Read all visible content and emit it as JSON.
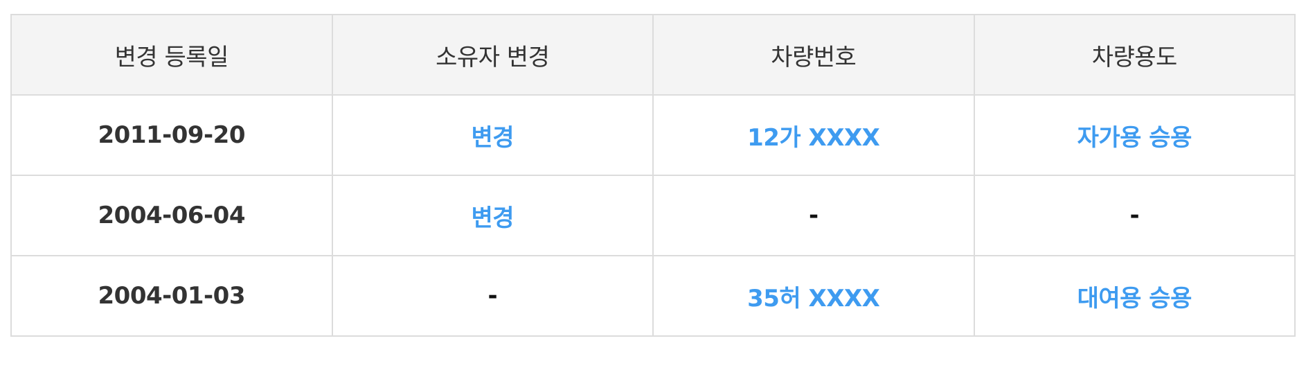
{
  "table": {
    "headers": [
      "변경 등록일",
      "소유자 변경",
      "차량번호",
      "차량용도"
    ],
    "rows": [
      {
        "date": "2011-09-20",
        "owner_change": "변경",
        "plate": "12가 XXXX",
        "usage": "자가용 승용"
      },
      {
        "date": "2004-06-04",
        "owner_change": "변경",
        "plate": "-",
        "usage": "-"
      },
      {
        "date": "2004-01-03",
        "owner_change": "-",
        "plate": "35허 XXXX",
        "usage": "대여용 승용"
      }
    ]
  },
  "colors": {
    "link": "#3e9bf0",
    "header_bg": "#f4f4f4",
    "border": "#dcdcdc",
    "text": "#333333"
  }
}
